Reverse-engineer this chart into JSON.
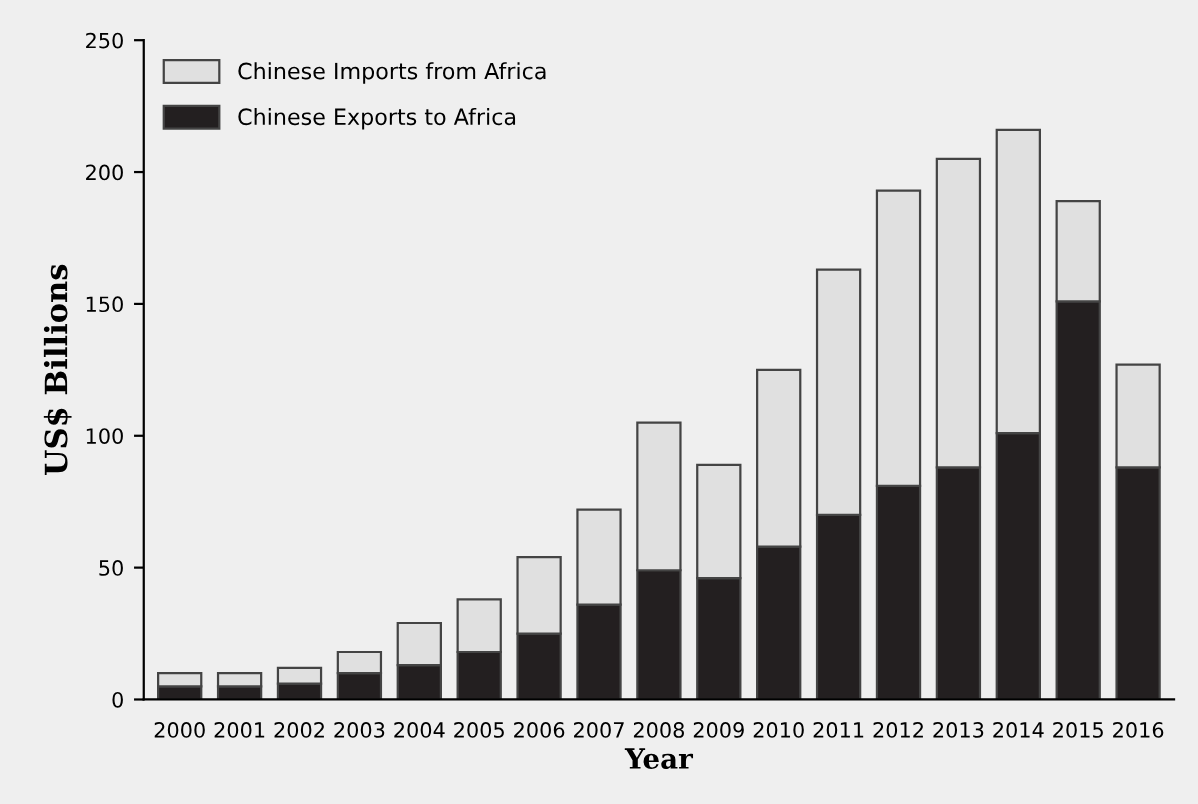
{
  "chart_data": {
    "type": "bar",
    "stacked": true,
    "xlabel": "Year",
    "ylabel": "US$ Billions",
    "categories": [
      "2000",
      "2001",
      "2002",
      "2003",
      "2004",
      "2005",
      "2006",
      "2007",
      "2008",
      "2009",
      "2010",
      "2011",
      "2012",
      "2013",
      "2014",
      "2015",
      "2016"
    ],
    "series": [
      {
        "name": "Chinese Exports to Africa",
        "color": "#231f20",
        "values": [
          5,
          5,
          6,
          10,
          13,
          18,
          25,
          36,
          49,
          46,
          58,
          70,
          81,
          88,
          101,
          151,
          88
        ]
      },
      {
        "name": "Chinese Imports from Africa",
        "color": "#e0e0e0",
        "values": [
          5,
          5,
          6,
          8,
          16,
          20,
          29,
          36,
          56,
          43,
          67,
          93,
          112,
          117,
          115,
          38,
          39
        ]
      }
    ],
    "ylim": [
      0,
      250
    ],
    "yticks": [
      0,
      50,
      100,
      150,
      200,
      250
    ],
    "grid": false,
    "legend": "top left"
  }
}
